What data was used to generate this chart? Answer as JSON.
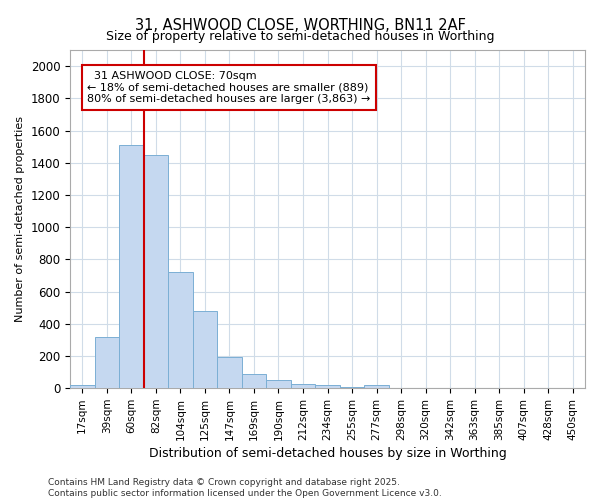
{
  "title1": "31, ASHWOOD CLOSE, WORTHING, BN11 2AF",
  "title2": "Size of property relative to semi-detached houses in Worthing",
  "xlabel": "Distribution of semi-detached houses by size in Worthing",
  "ylabel": "Number of semi-detached properties",
  "bar_labels": [
    "17sqm",
    "39sqm",
    "60sqm",
    "82sqm",
    "104sqm",
    "125sqm",
    "147sqm",
    "169sqm",
    "190sqm",
    "212sqm",
    "234sqm",
    "255sqm",
    "277sqm",
    "298sqm",
    "320sqm",
    "342sqm",
    "363sqm",
    "385sqm",
    "407sqm",
    "428sqm",
    "450sqm"
  ],
  "bar_values": [
    20,
    315,
    1510,
    1450,
    720,
    480,
    195,
    90,
    50,
    25,
    18,
    5,
    18,
    0,
    0,
    0,
    0,
    0,
    0,
    0,
    0
  ],
  "bar_color": "#c5d8f0",
  "bar_edge_color": "#7bafd4",
  "vline_x_index": 2.5,
  "vline_color": "#cc0000",
  "ylim": [
    0,
    2100
  ],
  "yticks": [
    0,
    200,
    400,
    600,
    800,
    1000,
    1200,
    1400,
    1600,
    1800,
    2000
  ],
  "property_label": "31 ASHWOOD CLOSE: 70sqm",
  "pct_smaller": 18,
  "pct_larger": 80,
  "n_smaller": 889,
  "n_larger": 3863,
  "annotation_box_color": "#ffffff",
  "annotation_box_edge": "#cc0000",
  "footer1": "Contains HM Land Registry data © Crown copyright and database right 2025.",
  "footer2": "Contains public sector information licensed under the Open Government Licence v3.0.",
  "bg_color": "#ffffff",
  "grid_color": "#d0dce8"
}
